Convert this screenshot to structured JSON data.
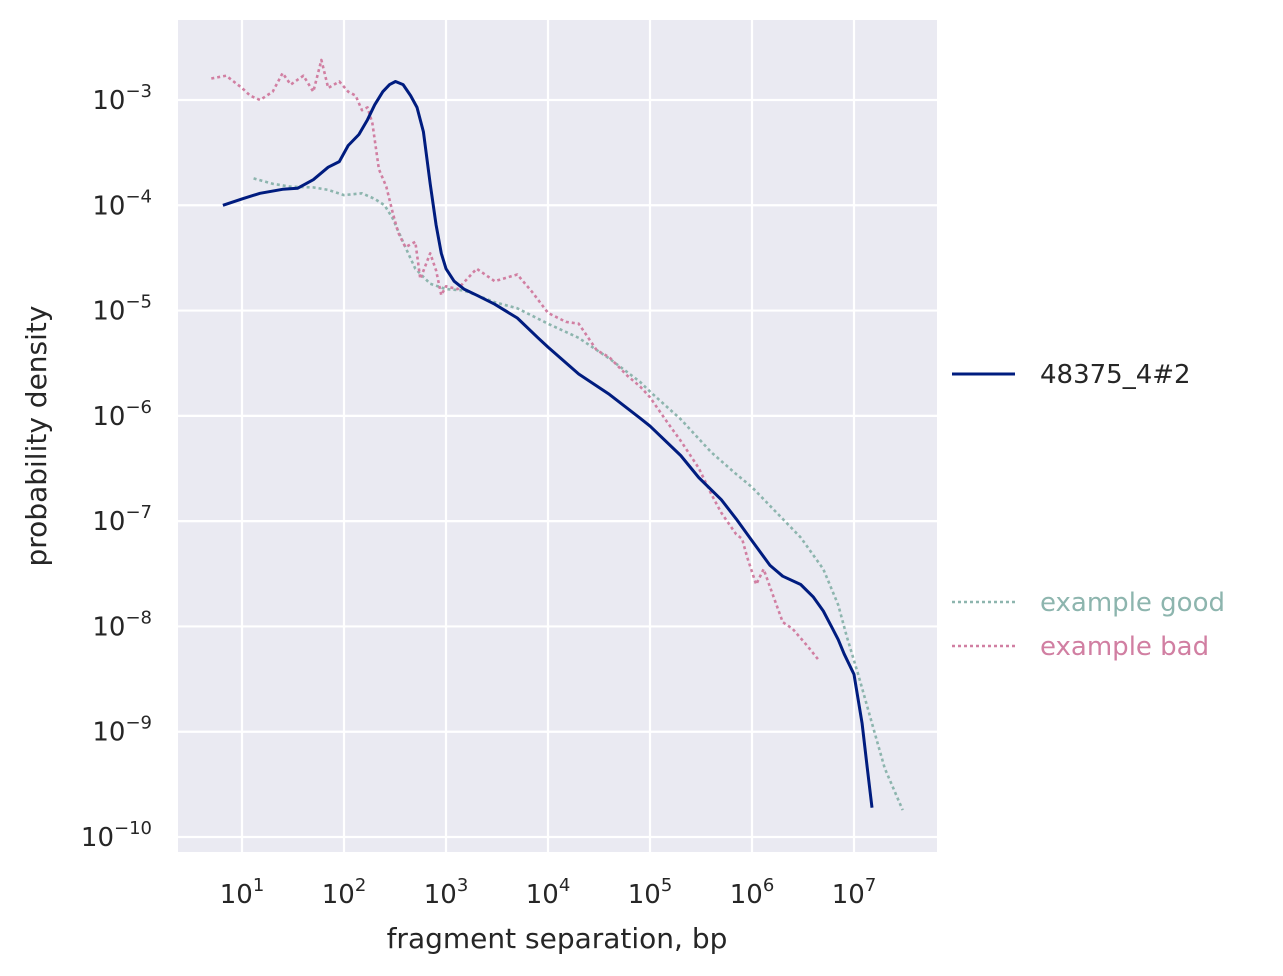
{
  "chart_data": {
    "type": "line",
    "xlabel": "fragment separation, bp",
    "ylabel": "probability density",
    "x_scale": "log",
    "y_scale": "log",
    "xlim": [
      2.5,
      60000000
    ],
    "ylim": [
      8e-11,
      0.005
    ],
    "x_ticks": [
      {
        "base": "10",
        "exp": "1",
        "value": 10
      },
      {
        "base": "10",
        "exp": "2",
        "value": 100
      },
      {
        "base": "10",
        "exp": "3",
        "value": 1000
      },
      {
        "base": "10",
        "exp": "4",
        "value": 10000
      },
      {
        "base": "10",
        "exp": "5",
        "value": 100000
      },
      {
        "base": "10",
        "exp": "6",
        "value": 1000000
      },
      {
        "base": "10",
        "exp": "7",
        "value": 10000000
      }
    ],
    "y_ticks": [
      {
        "base": "10",
        "exp": "−3",
        "value": 0.001
      },
      {
        "base": "10",
        "exp": "−4",
        "value": 0.0001
      },
      {
        "base": "10",
        "exp": "−5",
        "value": 1e-05
      },
      {
        "base": "10",
        "exp": "−6",
        "value": 1e-06
      },
      {
        "base": "10",
        "exp": "−7",
        "value": 1e-07
      },
      {
        "base": "10",
        "exp": "−8",
        "value": 1e-08
      },
      {
        "base": "10",
        "exp": "−9",
        "value": 1e-09
      },
      {
        "base": "10",
        "exp": "−10",
        "value": 1e-10
      }
    ],
    "grid": true,
    "legend_position": "right",
    "series": [
      {
        "name": "48375_4#2",
        "style": "solid",
        "color": "#001c7f",
        "points": [
          [
            6.5,
            0.0001
          ],
          [
            10,
            0.000115
          ],
          [
            15,
            0.00013
          ],
          [
            25,
            0.000142
          ],
          [
            35,
            0.000145
          ],
          [
            50,
            0.000175
          ],
          [
            70,
            0.00023
          ],
          [
            90,
            0.00026
          ],
          [
            110,
            0.00037
          ],
          [
            140,
            0.00047
          ],
          [
            170,
            0.00065
          ],
          [
            200,
            0.0009
          ],
          [
            240,
            0.0012
          ],
          [
            280,
            0.0014
          ],
          [
            320,
            0.0015
          ],
          [
            380,
            0.0014
          ],
          [
            450,
            0.0011
          ],
          [
            520,
            0.00085
          ],
          [
            600,
            0.0005
          ],
          [
            700,
            0.00016
          ],
          [
            800,
            6.5e-05
          ],
          [
            900,
            3.5e-05
          ],
          [
            1000,
            2.5e-05
          ],
          [
            1200,
            1.9e-05
          ],
          [
            1500,
            1.6e-05
          ],
          [
            2000,
            1.4e-05
          ],
          [
            3000,
            1.15e-05
          ],
          [
            5000,
            8.5e-06
          ],
          [
            8000,
            5.5e-06
          ],
          [
            10000,
            4.5e-06
          ],
          [
            20000,
            2.5e-06
          ],
          [
            40000,
            1.6e-06
          ],
          [
            80000,
            9.5e-07
          ],
          [
            100000,
            8e-07
          ],
          [
            200000,
            4.2e-07
          ],
          [
            300000,
            2.6e-07
          ],
          [
            500000,
            1.6e-07
          ],
          [
            700000,
            1.05e-07
          ],
          [
            1000000,
            6.5e-08
          ],
          [
            1500000,
            3.8e-08
          ],
          [
            2000000,
            3e-08
          ],
          [
            3000000,
            2.5e-08
          ],
          [
            4000000,
            1.9e-08
          ],
          [
            5000000,
            1.4e-08
          ],
          [
            6000000,
            1e-08
          ],
          [
            7000000,
            7.5e-09
          ],
          [
            8000000,
            5.5e-09
          ],
          [
            10000000,
            3.5e-09
          ],
          [
            12000000,
            1.2e-09
          ],
          [
            13500000,
            4.5e-10
          ],
          [
            15000000,
            1.9e-10
          ]
        ]
      },
      {
        "name": "example good",
        "style": "dotted",
        "color": "#8db5ae",
        "points": [
          [
            13,
            0.00018
          ],
          [
            20,
            0.00016
          ],
          [
            30,
            0.00015
          ],
          [
            50,
            0.000148
          ],
          [
            70,
            0.00014
          ],
          [
            100,
            0.000125
          ],
          [
            150,
            0.00013
          ],
          [
            200,
            0.000115
          ],
          [
            250,
            0.0001
          ],
          [
            300,
            7.5e-05
          ],
          [
            400,
            4e-05
          ],
          [
            500,
            2.5e-05
          ],
          [
            700,
            1.8e-05
          ],
          [
            1000,
            1.6e-05
          ],
          [
            1500,
            1.55e-05
          ],
          [
            2000,
            1.4e-05
          ],
          [
            3000,
            1.2e-05
          ],
          [
            5000,
            1.05e-05
          ],
          [
            10000,
            7.5e-06
          ],
          [
            20000,
            5.5e-06
          ],
          [
            40000,
            3.5e-06
          ],
          [
            80000,
            2.1e-06
          ],
          [
            100000,
            1.7e-06
          ],
          [
            200000,
            9.3e-07
          ],
          [
            400000,
            4.5e-07
          ],
          [
            700000,
            2.8e-07
          ],
          [
            1000000,
            2.1e-07
          ],
          [
            2000000,
            1.05e-07
          ],
          [
            3000000,
            7e-08
          ],
          [
            5000000,
            3.5e-08
          ],
          [
            7000000,
            1.6e-08
          ],
          [
            8500000,
            8e-09
          ],
          [
            11000000,
            3.5e-09
          ],
          [
            15000000,
            1.2e-09
          ],
          [
            20000000,
            4.5e-10
          ],
          [
            30000000,
            1.8e-10
          ]
        ]
      },
      {
        "name": "example bad",
        "style": "dotted",
        "color": "#d17fa2",
        "points": [
          [
            5,
            0.0016
          ],
          [
            7,
            0.0017
          ],
          [
            10,
            0.0013
          ],
          [
            12,
            0.0011
          ],
          [
            15,
            0.001
          ],
          [
            20,
            0.0012
          ],
          [
            25,
            0.0018
          ],
          [
            30,
            0.0014
          ],
          [
            40,
            0.0017
          ],
          [
            50,
            0.0012
          ],
          [
            60,
            0.0024
          ],
          [
            70,
            0.0013
          ],
          [
            90,
            0.0015
          ],
          [
            110,
            0.0012
          ],
          [
            130,
            0.0011
          ],
          [
            150,
            0.0008
          ],
          [
            170,
            0.00085
          ],
          [
            190,
            0.0006
          ],
          [
            220,
            0.00022
          ],
          [
            260,
            0.00015
          ],
          [
            300,
            8.5e-05
          ],
          [
            340,
            5.5e-05
          ],
          [
            400,
            4e-05
          ],
          [
            500,
            4.5e-05
          ],
          [
            560,
            2e-05
          ],
          [
            700,
            3.5e-05
          ],
          [
            800,
            2.4e-05
          ],
          [
            900,
            1.4e-05
          ],
          [
            1000,
            1.7e-05
          ],
          [
            1300,
            1.6e-05
          ],
          [
            2000,
            2.5e-05
          ],
          [
            3000,
            1.9e-05
          ],
          [
            5000,
            2.2e-05
          ],
          [
            7000,
            1.5e-05
          ],
          [
            10000,
            9.5e-06
          ],
          [
            15000,
            7.8e-06
          ],
          [
            20000,
            7.5e-06
          ],
          [
            30000,
            4.2e-06
          ],
          [
            40000,
            3.6e-06
          ],
          [
            60000,
            2.4e-06
          ],
          [
            80000,
            1.9e-06
          ],
          [
            100000,
            1.5e-06
          ],
          [
            150000,
            8.5e-07
          ],
          [
            200000,
            5.8e-07
          ],
          [
            300000,
            3.2e-07
          ],
          [
            400000,
            1.8e-07
          ],
          [
            500000,
            1.2e-07
          ],
          [
            700000,
            7.5e-08
          ],
          [
            800000,
            6.8e-08
          ],
          [
            900000,
            4.5e-08
          ],
          [
            1100000,
            2.5e-08
          ],
          [
            1300000,
            3.5e-08
          ],
          [
            1600000,
            2e-08
          ],
          [
            2000000,
            1.1e-08
          ],
          [
            2500000,
            9.5e-09
          ],
          [
            3500000,
            6.5e-09
          ],
          [
            4500000,
            4.8e-09
          ]
        ]
      }
    ]
  }
}
